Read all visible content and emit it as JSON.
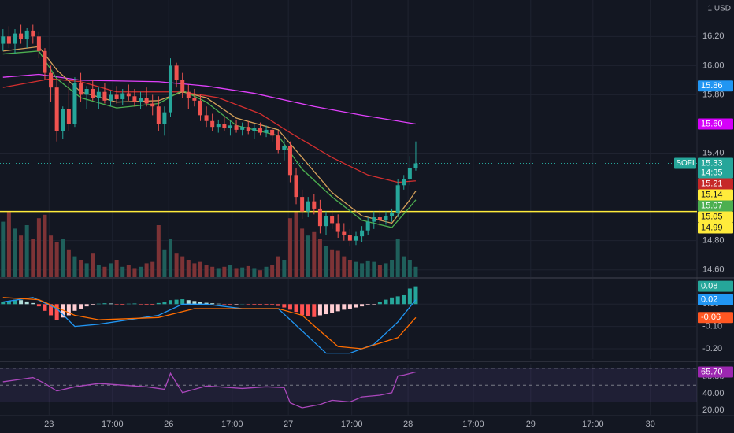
{
  "chart_data": [
    {
      "type": "candlestick",
      "currency": "1 USD",
      "symbol": "SOFI",
      "time_left": "14:35",
      "xlim": [
        -0.5,
        116
      ],
      "xticks": [
        {
          "value": 7.7,
          "label": "23"
        },
        {
          "value": 18.3,
          "label": "17:00"
        },
        {
          "value": 27.7,
          "label": "26"
        },
        {
          "value": 38.3,
          "label": "17:00"
        },
        {
          "value": 47.7,
          "label": "27"
        },
        {
          "value": 58.3,
          "label": "17:00"
        },
        {
          "value": 67.7,
          "label": "28"
        },
        {
          "value": 78.6,
          "label": "17:00"
        },
        {
          "value": 88.2,
          "label": "29"
        },
        {
          "value": 98.6,
          "label": "17:00"
        },
        {
          "value": 108.2,
          "label": "30"
        }
      ],
      "ylim": [
        14.55,
        16.45
      ],
      "yticks": [
        {
          "value": 16.2,
          "label": "16.20"
        },
        {
          "value": 16.0,
          "label": "16.00"
        },
        {
          "value": 15.8,
          "label": "15.80"
        },
        {
          "value": 15.4,
          "label": "15.40"
        },
        {
          "value": 14.8,
          "label": "14.80"
        },
        {
          "value": 14.6,
          "label": "14.60"
        }
      ],
      "up_color": "#26a69a",
      "down_color": "#ef5350",
      "candles": {
        "open": [
          16.15,
          16.2,
          16.15,
          16.22,
          16.18,
          16.24,
          16.2,
          16.1,
          15.95,
          15.85,
          15.55,
          15.7,
          15.6,
          15.88,
          15.8,
          15.84,
          15.78,
          15.82,
          15.76,
          15.8,
          15.77,
          15.81,
          15.79,
          15.75,
          15.78,
          15.74,
          15.72,
          15.6,
          15.68,
          16.0,
          15.9,
          15.82,
          15.78,
          15.76,
          15.66,
          15.62,
          15.58,
          15.6,
          15.57,
          15.59,
          15.56,
          15.58,
          15.55,
          15.57,
          15.54,
          15.56,
          15.52,
          15.42,
          15.45,
          15.25,
          15.1,
          15.0,
          15.07,
          15.02,
          14.9,
          14.97,
          14.92,
          14.86,
          14.84,
          14.8,
          14.83,
          14.87,
          14.93,
          14.96,
          14.94,
          14.97,
          14.99,
          15.18,
          15.22,
          15.3
        ],
        "high": [
          16.25,
          16.27,
          16.25,
          16.28,
          16.26,
          16.28,
          16.23,
          16.12,
          16.0,
          15.9,
          15.72,
          15.88,
          15.92,
          15.95,
          15.86,
          15.9,
          15.85,
          15.88,
          15.83,
          15.86,
          15.84,
          15.87,
          15.84,
          15.82,
          15.85,
          15.8,
          15.79,
          15.72,
          16.05,
          16.02,
          15.95,
          15.87,
          15.84,
          15.8,
          15.72,
          15.67,
          15.63,
          15.65,
          15.62,
          15.63,
          15.61,
          15.62,
          15.6,
          15.61,
          15.59,
          15.58,
          15.55,
          15.5,
          15.48,
          15.3,
          15.15,
          15.1,
          15.12,
          15.08,
          15.0,
          15.02,
          14.98,
          14.92,
          14.88,
          14.86,
          14.9,
          14.96,
          15.0,
          15.01,
          15.0,
          15.02,
          15.22,
          15.25,
          15.38,
          15.48
        ],
        "low": [
          16.1,
          16.12,
          16.08,
          16.15,
          16.12,
          16.15,
          16.05,
          15.9,
          15.75,
          15.48,
          15.5,
          15.55,
          15.58,
          15.75,
          15.7,
          15.76,
          15.7,
          15.74,
          15.72,
          15.74,
          15.73,
          15.76,
          15.72,
          15.7,
          15.72,
          15.66,
          15.55,
          15.52,
          15.65,
          15.85,
          15.78,
          15.7,
          15.72,
          15.62,
          15.58,
          15.55,
          15.54,
          15.55,
          15.52,
          15.54,
          15.52,
          15.53,
          15.5,
          15.52,
          15.51,
          15.48,
          15.4,
          15.35,
          15.2,
          15.05,
          14.95,
          14.96,
          14.98,
          14.85,
          14.84,
          14.88,
          14.82,
          14.8,
          14.76,
          14.77,
          14.79,
          14.84,
          14.88,
          14.9,
          14.91,
          14.93,
          14.96,
          15.15,
          15.18,
          15.28
        ],
        "close": [
          16.2,
          16.15,
          16.22,
          16.18,
          16.24,
          16.2,
          16.1,
          15.95,
          15.85,
          15.55,
          15.7,
          15.6,
          15.88,
          15.8,
          15.84,
          15.78,
          15.82,
          15.76,
          15.8,
          15.77,
          15.81,
          15.79,
          15.75,
          15.78,
          15.74,
          15.72,
          15.6,
          15.68,
          16.0,
          15.9,
          15.82,
          15.78,
          15.76,
          15.66,
          15.62,
          15.58,
          15.6,
          15.57,
          15.59,
          15.56,
          15.58,
          15.55,
          15.57,
          15.54,
          15.56,
          15.52,
          15.42,
          15.45,
          15.25,
          15.1,
          15.0,
          15.07,
          15.02,
          14.9,
          14.97,
          14.92,
          14.86,
          14.84,
          14.8,
          14.83,
          14.87,
          14.93,
          14.96,
          14.94,
          14.97,
          14.99,
          15.18,
          15.22,
          15.3,
          15.33
        ]
      },
      "volume": {
        "ylim": [
          0,
          400
        ],
        "up_color": "#1f5f5b",
        "down_color": "#7d3336",
        "values": [
          80,
          95,
          70,
          60,
          75,
          55,
          85,
          90,
          60,
          50,
          55,
          40,
          30,
          25,
          20,
          35,
          18,
          15,
          20,
          25,
          15,
          18,
          12,
          15,
          20,
          22,
          75,
          40,
          55,
          35,
          30,
          25,
          20,
          22,
          18,
          15,
          12,
          15,
          18,
          12,
          14,
          16,
          12,
          10,
          15,
          18,
          30,
          25,
          85,
          95,
          70,
          60,
          65,
          55,
          45,
          40,
          38,
          30,
          25,
          22,
          20,
          24,
          22,
          18,
          20,
          25,
          55,
          30,
          25,
          15
        ]
      },
      "lines": [
        {
          "color": "#e040fb",
          "x": [
            0,
            6,
            13,
            26,
            34,
            42,
            52,
            60,
            69
          ],
          "values": [
            15.92,
            15.94,
            15.9,
            15.89,
            15.86,
            15.81,
            15.72,
            15.66,
            15.6
          ]
        },
        {
          "color": "#d32f2f",
          "x": [
            0,
            8,
            13,
            19,
            30,
            36,
            43,
            48,
            55,
            61,
            66,
            69
          ],
          "values": [
            15.85,
            15.91,
            15.89,
            15.82,
            15.82,
            15.78,
            15.67,
            15.54,
            15.37,
            15.25,
            15.2,
            15.21
          ]
        },
        {
          "color": "#d4a05a",
          "x": [
            0,
            6,
            9,
            13,
            19,
            26,
            30,
            34,
            39,
            46,
            50,
            55,
            60,
            65,
            68,
            69
          ],
          "values": [
            16.1,
            16.13,
            15.97,
            15.82,
            15.75,
            15.76,
            15.82,
            15.78,
            15.64,
            15.56,
            15.37,
            15.13,
            14.97,
            14.92,
            15.08,
            15.14
          ]
        },
        {
          "color": "#4caf50",
          "x": [
            0,
            6,
            9,
            13,
            19,
            26,
            30,
            34,
            39,
            46,
            50,
            55,
            60,
            65,
            68,
            69
          ],
          "values": [
            16.08,
            16.1,
            15.91,
            15.78,
            15.71,
            15.74,
            15.83,
            15.75,
            15.59,
            15.52,
            15.29,
            15.1,
            14.94,
            14.89,
            15.03,
            15.08
          ]
        }
      ],
      "hline": {
        "value": 15.0,
        "color": "#ffeb3b"
      },
      "last_price": {
        "value": 15.33,
        "color": "#26a69a"
      },
      "price_labels": [
        {
          "value": 15.86,
          "label": "15.86",
          "color": "#2196f3"
        },
        {
          "value": 15.6,
          "label": "15.60",
          "color": "#d500f9"
        },
        {
          "value": 15.33,
          "label": "15.33",
          "color": "#26a69a"
        },
        {
          "value": 15.21,
          "label": "15.21",
          "color": "#c62828"
        },
        {
          "value": 15.14,
          "label": "15.14",
          "color": "#ffeb3b"
        },
        {
          "value": 15.07,
          "label": "15.07",
          "color": "#4caf50"
        },
        {
          "value": 15.05,
          "label": "15.05",
          "color": "#ffeb3b"
        },
        {
          "value": 14.99,
          "label": "14.99",
          "color": "#ffeb3b"
        }
      ]
    },
    {
      "type": "macd",
      "ylim": [
        -0.246,
        0.114
      ],
      "yticks": [
        {
          "value": 0,
          "label": "0.00"
        },
        {
          "value": -0.1,
          "label": "-0.10"
        },
        {
          "value": -0.2,
          "label": "-0.20"
        }
      ],
      "histogram": {
        "colors": [
          "#26a69a",
          "#b2dfdb",
          "#ff5252",
          "#ffcdd2"
        ],
        "values": [
          0.01,
          0.015,
          0.02,
          0.018,
          0.012,
          0.005,
          -0.01,
          -0.03,
          -0.05,
          -0.07,
          -0.06,
          -0.05,
          -0.03,
          -0.02,
          -0.01,
          -0.005,
          0.002,
          0.004,
          0.003,
          -0.002,
          -0.003,
          0.002,
          0.003,
          -0.002,
          -0.004,
          -0.006,
          0.005,
          0.008,
          0.018,
          0.02,
          0.022,
          0.018,
          0.014,
          0.01,
          0.006,
          0.004,
          0.002,
          -0.002,
          -0.003,
          -0.002,
          0.001,
          -0.002,
          -0.003,
          -0.004,
          -0.005,
          -0.006,
          -0.008,
          -0.015,
          -0.025,
          -0.035,
          -0.05,
          -0.055,
          -0.058,
          -0.05,
          -0.045,
          -0.04,
          -0.032,
          -0.025,
          -0.02,
          -0.015,
          -0.01,
          -0.006,
          -0.002,
          0.01,
          0.02,
          0.03,
          0.035,
          0.04,
          0.07,
          0.08
        ]
      },
      "lines": [
        {
          "color": "#2196f3",
          "x": [
            0,
            5,
            9,
            12,
            16,
            26,
            30,
            34,
            40,
            46,
            50,
            54,
            58,
            62,
            66,
            69
          ],
          "values": [
            0.01,
            0.03,
            -0.02,
            -0.1,
            -0.09,
            -0.05,
            0.0,
            0.0,
            -0.02,
            -0.02,
            -0.12,
            -0.22,
            -0.22,
            -0.18,
            -0.08,
            0.02
          ]
        },
        {
          "color": "#ff6d00",
          "x": [
            0,
            6,
            12,
            16,
            26,
            32,
            40,
            46,
            50,
            56,
            60,
            66,
            69
          ],
          "values": [
            0.03,
            0.02,
            -0.05,
            -0.07,
            -0.06,
            -0.02,
            -0.02,
            -0.02,
            -0.05,
            -0.19,
            -0.2,
            -0.15,
            -0.06
          ]
        }
      ],
      "price_labels": [
        {
          "value": 0.08,
          "label": "0.08",
          "color": "#26a69a"
        },
        {
          "value": 0.02,
          "label": "0.02",
          "color": "#2196f3"
        },
        {
          "value": -0.06,
          "label": "-0.06",
          "color": "#ff5722"
        }
      ]
    },
    {
      "type": "rsi",
      "ylim": [
        13.6,
        75.5
      ],
      "yticks": [
        {
          "value": 60,
          "label": "60.00"
        },
        {
          "value": 40,
          "label": "40.00"
        },
        {
          "value": 20,
          "label": "20.00"
        }
      ],
      "levels": [
        70,
        50,
        30
      ],
      "band_color": "rgba(126,87,194,0.12)",
      "lines": [
        {
          "color": "#ab47bc",
          "x": [
            0,
            3,
            5,
            7,
            9,
            12,
            16,
            20,
            24,
            27,
            28,
            30,
            34,
            40,
            44,
            47,
            48,
            50,
            53,
            55,
            58,
            60,
            63,
            65,
            66,
            67,
            69
          ],
          "values": [
            54,
            57,
            59,
            52,
            43,
            48,
            52,
            50,
            48,
            45,
            64,
            41,
            49,
            46,
            48,
            47,
            29,
            23,
            27,
            32,
            30,
            36,
            38,
            41,
            61,
            62,
            65.7
          ]
        }
      ],
      "price_labels": [
        {
          "value": 65.7,
          "label": "65.70",
          "color": "#9c27b0"
        }
      ]
    }
  ]
}
